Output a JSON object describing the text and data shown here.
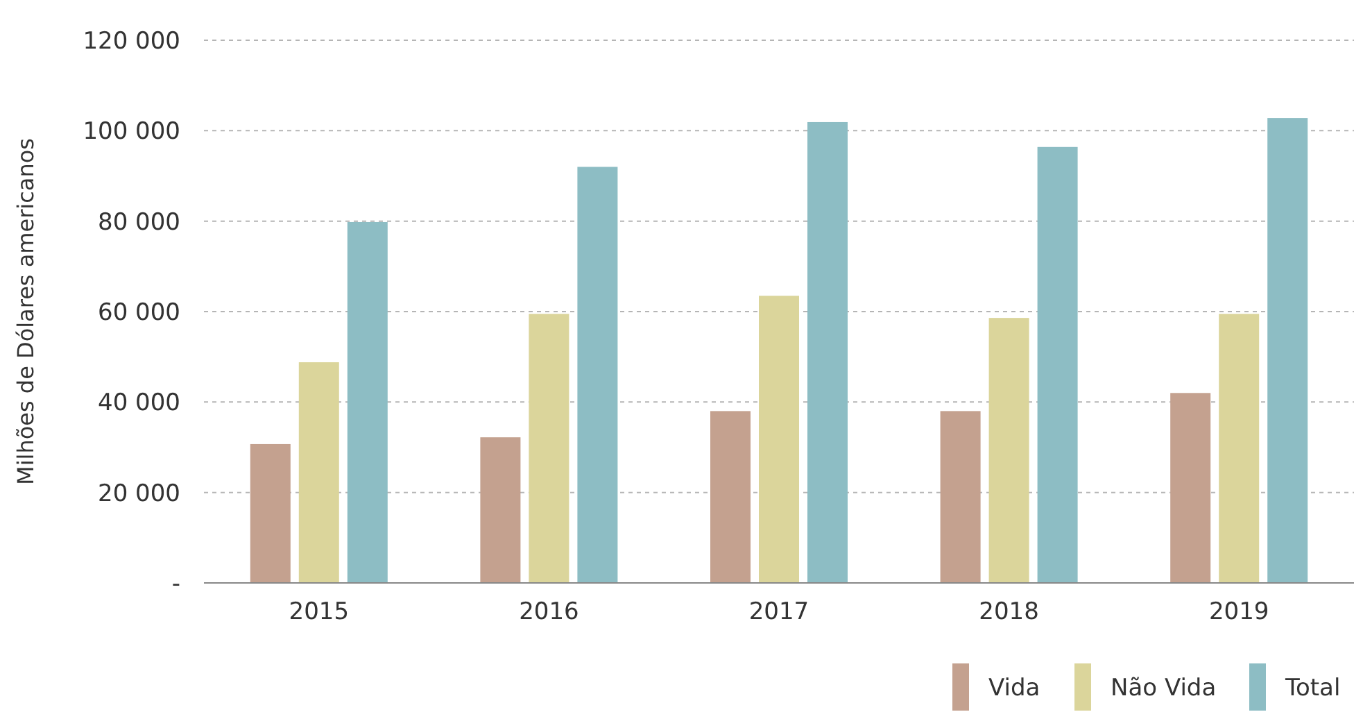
{
  "chart_data": {
    "type": "bar",
    "ylabel": "Milhões de Dólares americanos",
    "categories": [
      "2015",
      "2016",
      "2017",
      "2018",
      "2019"
    ],
    "series": [
      {
        "name": "Vida",
        "color": "#c4a18f",
        "values": [
          30700,
          32200,
          38000,
          38000,
          42000
        ]
      },
      {
        "name": "Não Vida",
        "color": "#dbd59b",
        "values": [
          48800,
          59500,
          63500,
          58600,
          59500
        ]
      },
      {
        "name": "Total",
        "color": "#8dbdc4",
        "values": [
          79800,
          92000,
          101900,
          96400,
          102800
        ]
      }
    ],
    "ylim": [
      0,
      120000
    ],
    "yticks": [
      {
        "value": 0,
        "label": "-"
      },
      {
        "value": 20000,
        "label": "20 000"
      },
      {
        "value": 40000,
        "label": "40 000"
      },
      {
        "value": 60000,
        "label": "60 000"
      },
      {
        "value": 80000,
        "label": "80 000"
      },
      {
        "value": 100000,
        "label": "100 000"
      },
      {
        "value": 120000,
        "label": "120 000"
      }
    ],
    "grid": "y",
    "legend": "bottom right"
  }
}
